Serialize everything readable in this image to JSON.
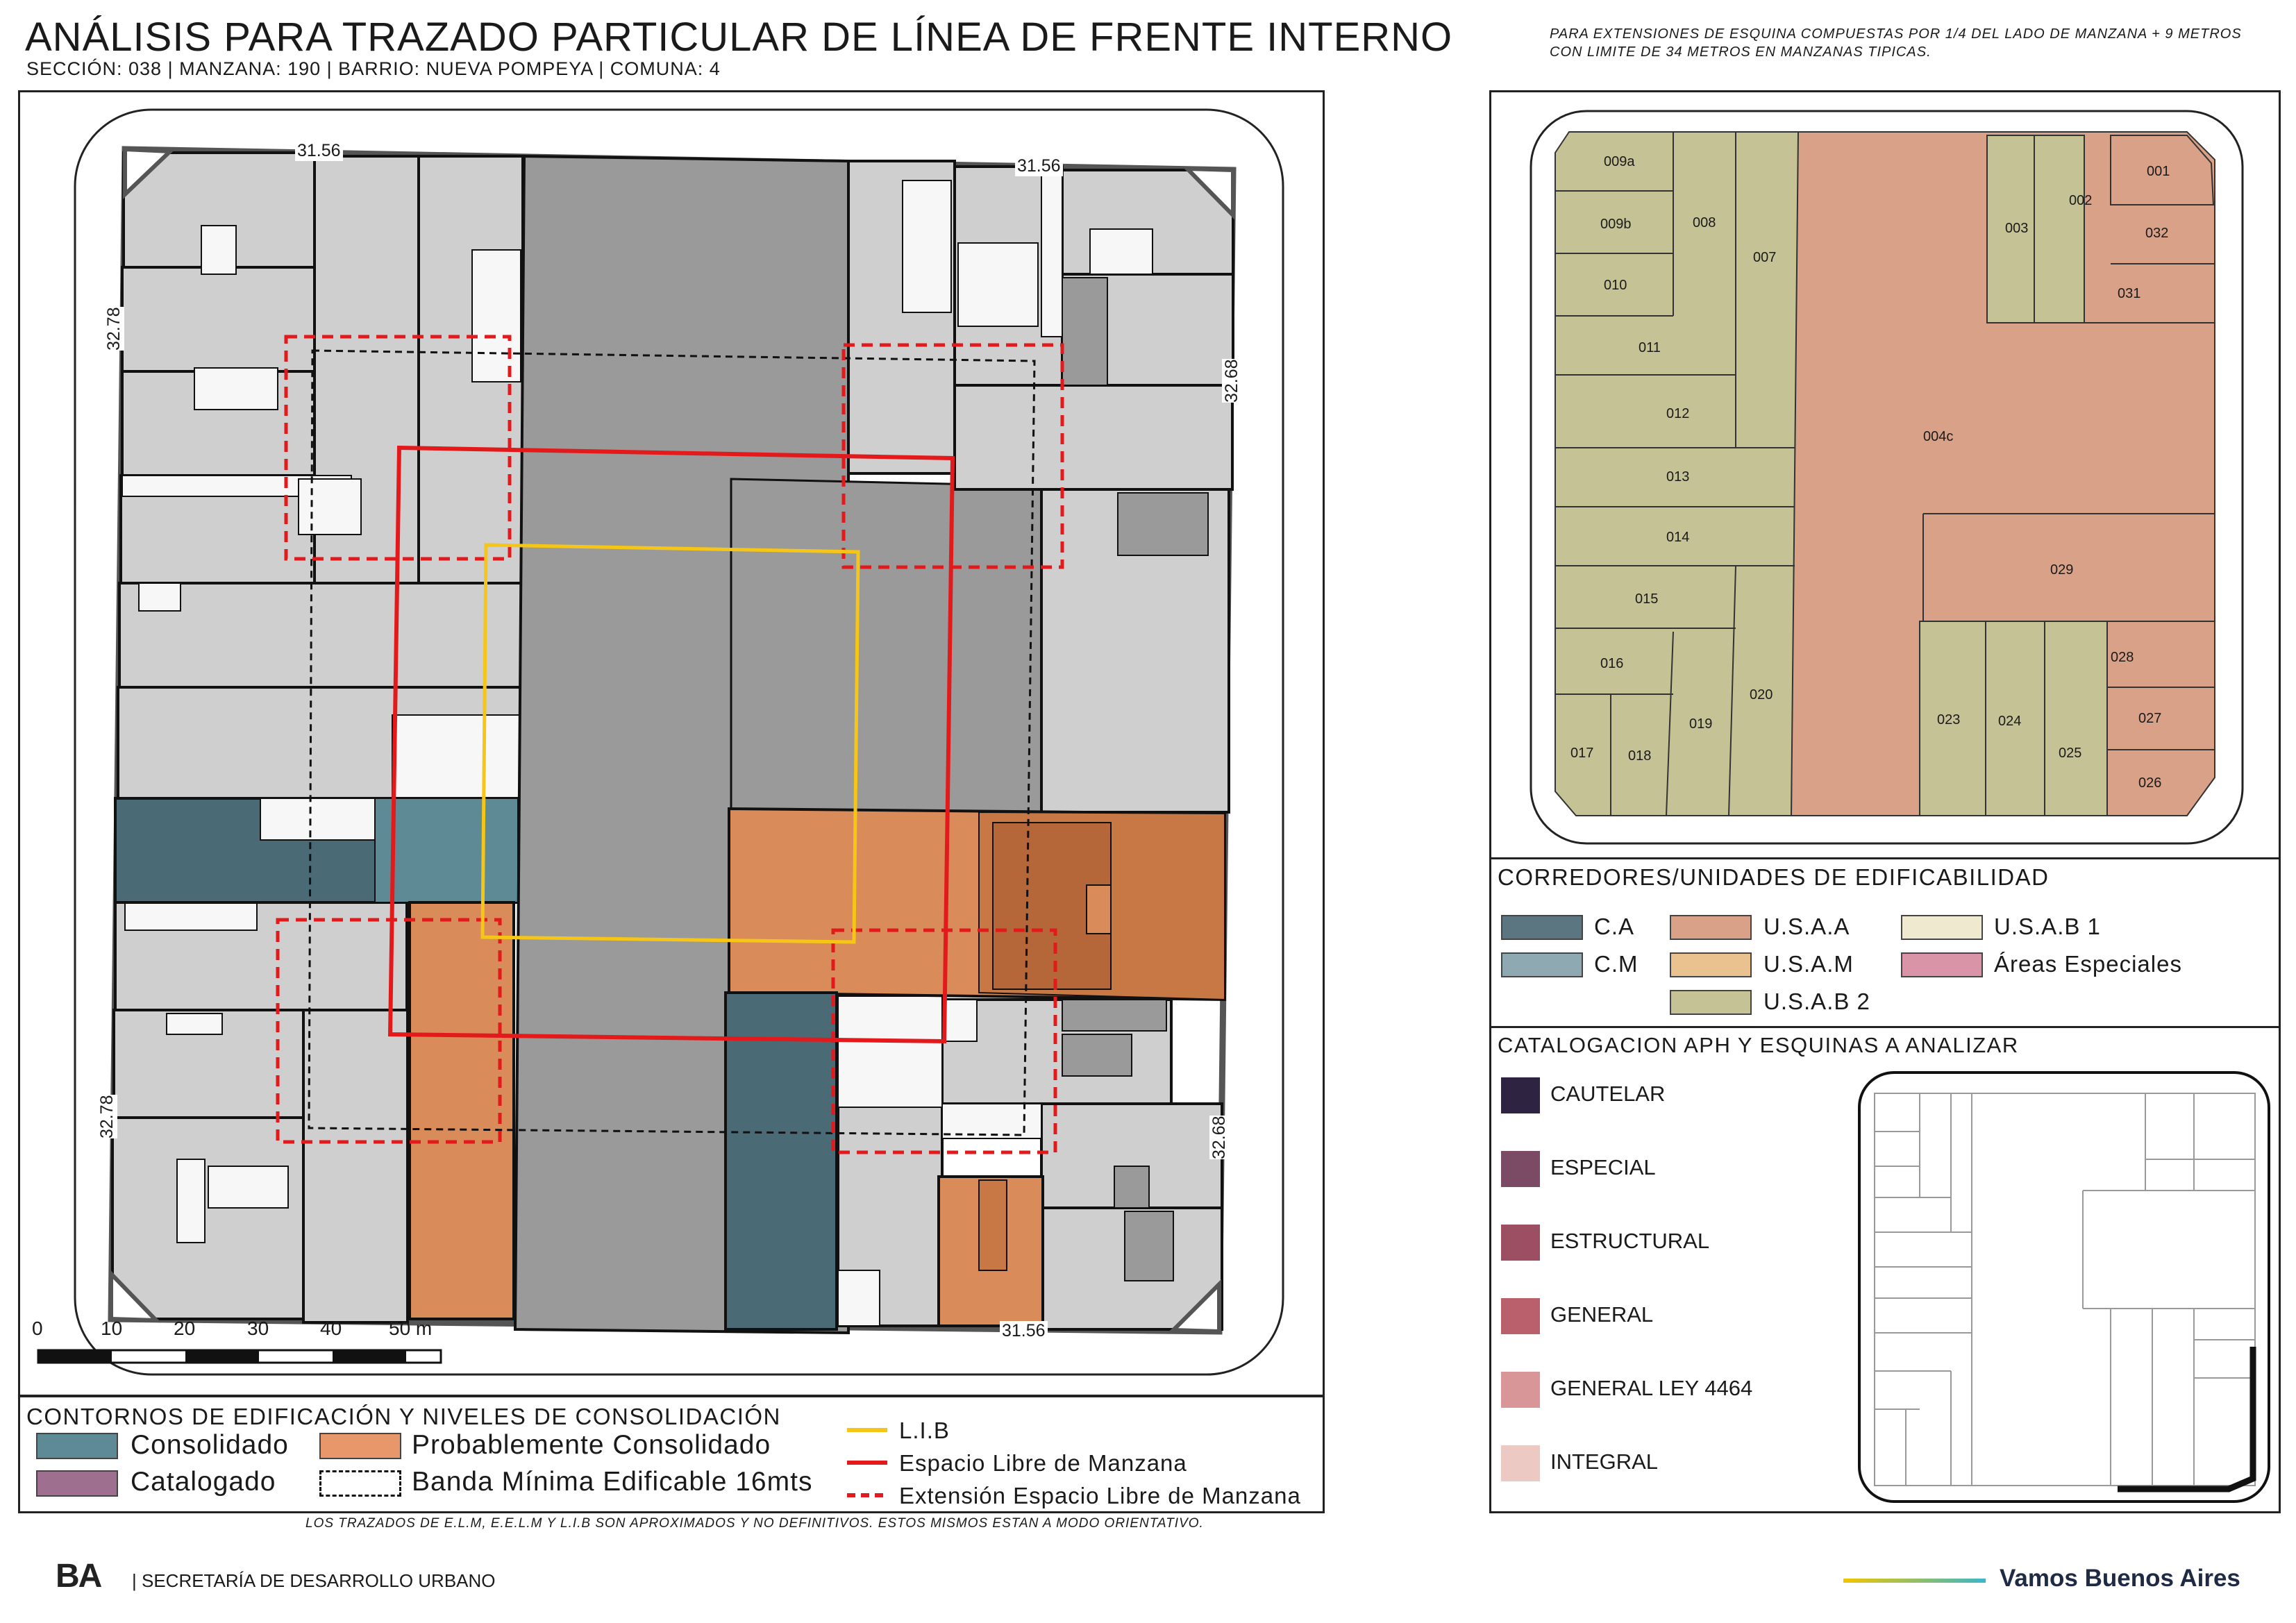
{
  "header": {
    "title": "ANÁLISIS PARA TRAZADO PARTICULAR DE LÍNEA DE FRENTE INTERNO",
    "subtitle": "SECCIÓN: 038 |  MANZANA: 190 | BARRIO: NUEVA POMPEYA | COMUNA: 4",
    "note": "PARA EXTENSIONES DE ESQUINA COMPUESTAS POR 1/4 DEL LADO DE MANZANA + 9 METROS CON LIMITE DE 34 METROS EN MANZANAS TIPICAS."
  },
  "map": {
    "side_top_left": "31.56",
    "side_top_right": "31.56",
    "side_bottom": "31.56",
    "side_left_upper": "32.78",
    "side_left_lower": "32.78",
    "side_right_upper": "32.68",
    "side_right_lower": "32.68",
    "scale": {
      "ticks": [
        "0",
        "10",
        "20",
        "30",
        "40",
        "50 m"
      ]
    }
  },
  "legend_main": {
    "title": "CONTORNOS DE EDIFICACIÓN Y NIVELES DE CONSOLIDACIÓN",
    "consolidado": "Consolidado",
    "probable": "Probablemente Consolidado",
    "catalogado": "Catalogado",
    "banda": "Banda Mínima Edificable 16mts",
    "lib": "L.I.B",
    "elm": "Espacio Libre de Manzana",
    "eelm": "Extensión Espacio Libre de Manzana",
    "colors": {
      "consolidado": "#5e8a96",
      "probable": "#e8976b",
      "catalogado": "#9e6f8e",
      "lib": "#f5c518",
      "elm": "#e31a1c"
    }
  },
  "parcel_map": {
    "labels": [
      "009a",
      "009b",
      "010",
      "011",
      "012",
      "013",
      "014",
      "015",
      "016",
      "017",
      "018",
      "019",
      "020",
      "008",
      "007",
      "004c",
      "003",
      "002",
      "001",
      "032",
      "031",
      "029",
      "028",
      "027",
      "026",
      "025",
      "024",
      "023"
    ]
  },
  "corredores": {
    "title": "CORREDORES/UNIDADES DE EDIFICABILIDAD",
    "items": [
      {
        "label": "C.A",
        "color": "#5b7581"
      },
      {
        "label": "C.M",
        "color": "#8fa9b3"
      },
      {
        "label": "U.S.A.A",
        "color": "#d9a187"
      },
      {
        "label": "U.S.A.M",
        "color": "#e9c28f"
      },
      {
        "label": "U.S.A.B 2",
        "color": "#c5c396"
      },
      {
        "label": "U.S.A.B 1",
        "color": "#efe9cf"
      },
      {
        "label": "Áreas Especiales",
        "color": "#d994a8"
      }
    ]
  },
  "catalogacion": {
    "title": "CATALOGACION APH Y ESQUINAS A ANALIZAR",
    "items": [
      {
        "label": "CAUTELAR",
        "color": "#2e2340"
      },
      {
        "label": "ESPECIAL",
        "color": "#7b4a64"
      },
      {
        "label": "ESTRUCTURAL",
        "color": "#9c4f62"
      },
      {
        "label": "GENERAL",
        "color": "#b9606c"
      },
      {
        "label": "GENERAL LEY 4464",
        "color": "#d99698"
      },
      {
        "label": "INTEGRAL",
        "color": "#ecc9c3"
      }
    ]
  },
  "footer": {
    "note": "LOS TRAZADOS DE E.L.M, E.E.L.M Y L.I.B SON APROXIMADOS Y NO DEFINITIVOS. ESTOS MISMOS ESTAN A MODO ORIENTATIVO.",
    "logo": "BA",
    "secretaria": "| SECRETARÍA DE DESARROLLO URBANO",
    "vamos": "Vamos Buenos Aires"
  }
}
